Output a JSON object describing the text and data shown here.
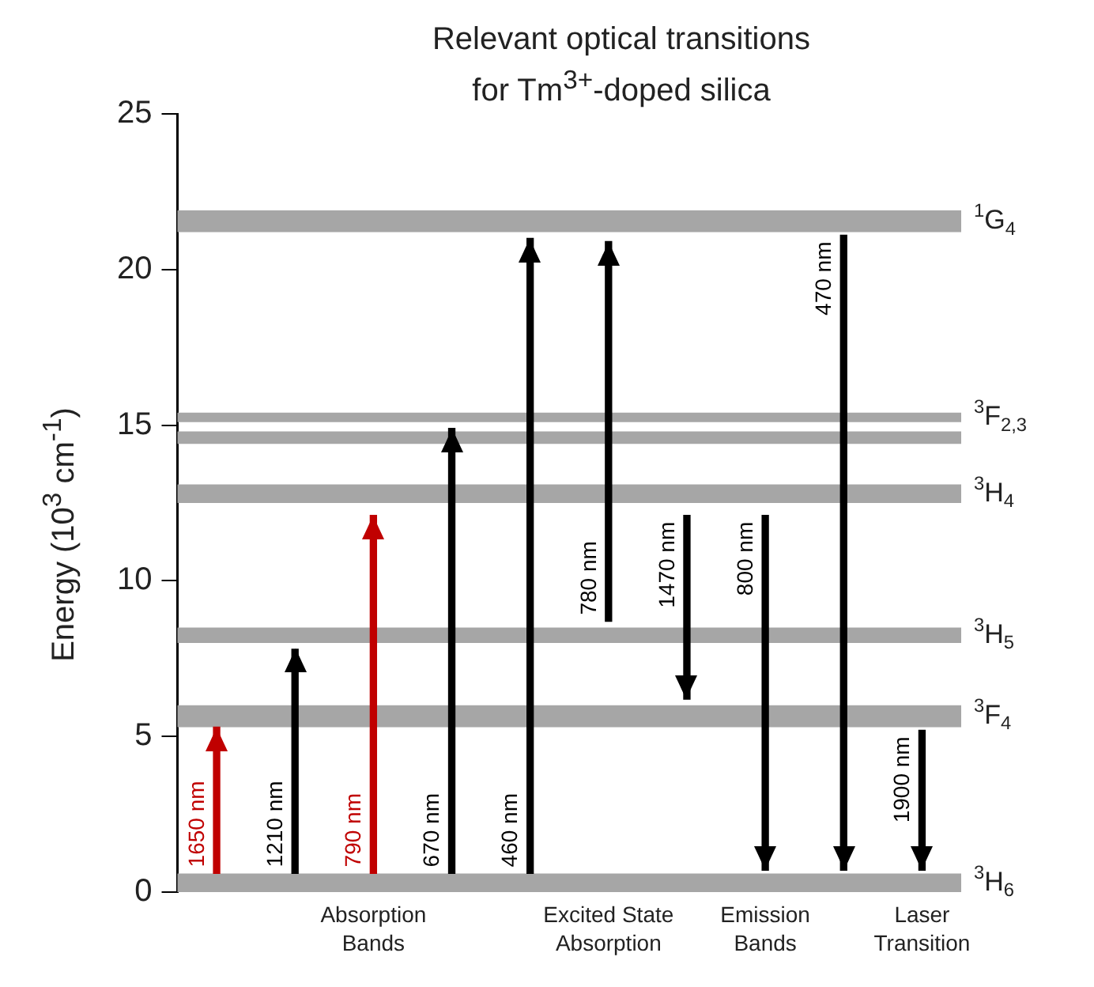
{
  "chart_data": {
    "type": "bar",
    "title": "Relevant optical transitions\nfor Tm$^{3+}$-doped silica",
    "ylabel": "Energy (10$^{3}$ cm$^{-1}$)",
    "categories": [
      null,
      null,
      null,
      null,
      null,
      null,
      null,
      null,
      null,
      null
    ],
    "base": [
      0.6,
      0.6,
      0.6,
      0.6,
      0.6,
      8.7,
      12.1,
      12.1,
      21.1,
      5.2
    ],
    "values": [
      4.7,
      7.2,
      11.5,
      14.3,
      20.4,
      12.2,
      -5.9,
      -11.4,
      -20.4,
      -4.5
    ],
    "colors": [
      "#c00000",
      "#000000",
      "#c00000",
      "#000000",
      "#000000",
      "#000000",
      "#000000",
      "#000000",
      "#000000",
      "#000000"
    ],
    "ylim": [
      0,
      25
    ],
    "yticks": [
      0,
      5,
      10,
      15,
      20,
      25
    ],
    "grid": false,
    "legend": false,
    "tick_labels": "y",
    "bands": [
      {
        "axis": "y",
        "from": 21.2,
        "to": 21.9,
        "label": "$^{1}$G$_{4}$",
        "color": "#a6a6a6"
      },
      {
        "axis": "y",
        "from": 15.1,
        "to": 15.4,
        "label": "$^{3}$F$_{2,3}$",
        "color": "#a6a6a6"
      },
      {
        "axis": "y",
        "from": 14.4,
        "to": 14.8,
        "label": null,
        "color": "#a6a6a6"
      },
      {
        "axis": "y",
        "from": 12.5,
        "to": 13.1,
        "label": "$^{3}$H$_{4}$",
        "color": "#a6a6a6"
      },
      {
        "axis": "y",
        "from": 8.0,
        "to": 8.5,
        "label": "$^{3}$H$_{5}$",
        "color": "#a6a6a6"
      },
      {
        "axis": "y",
        "from": 5.3,
        "to": 6.0,
        "label": "$^{3}$F$_{4}$",
        "color": "#a6a6a6"
      },
      {
        "axis": "y",
        "from": 0,
        "to": 0.6,
        "label": "$^{3}$H$_{6}$",
        "color": "#a6a6a6"
      }
    ],
    "annotations": [
      "1650 nm",
      "1210 nm",
      "790 nm",
      "670 nm",
      "460 nm",
      "780 nm",
      "1470 nm",
      "800 nm",
      "470 nm",
      "1900 nm",
      "Absorption Bands",
      "Excited State Absorption",
      "Emission Bands",
      "Laser Transition"
    ]
  }
}
